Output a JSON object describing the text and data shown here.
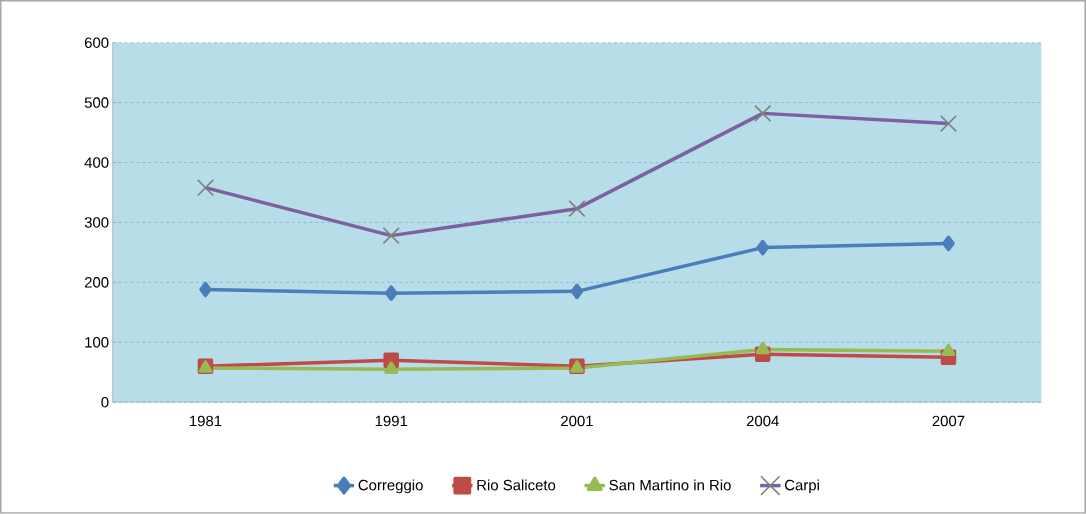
{
  "chart_data": {
    "type": "line",
    "categories": [
      "1981",
      "1991",
      "2001",
      "2004",
      "2007"
    ],
    "series": [
      {
        "name": "Correggio",
        "color": "#4a7ebb",
        "marker": "diamond",
        "values": [
          188,
          182,
          185,
          258,
          265
        ]
      },
      {
        "name": "Rio Saliceto",
        "color": "#be4b48",
        "marker": "square",
        "values": [
          60,
          70,
          60,
          80,
          75
        ]
      },
      {
        "name": "San Martino in Rio",
        "color": "#98b954",
        "marker": "triangle",
        "values": [
          57,
          55,
          57,
          88,
          85
        ]
      },
      {
        "name": "Carpi",
        "color": "#7d60a0",
        "marker": "cross",
        "values": [
          358,
          278,
          323,
          482,
          465
        ]
      }
    ],
    "ylim": [
      0,
      600
    ],
    "yticks": [
      0,
      100,
      200,
      300,
      400,
      500,
      600
    ],
    "grid": "y",
    "legend": "bottom"
  }
}
